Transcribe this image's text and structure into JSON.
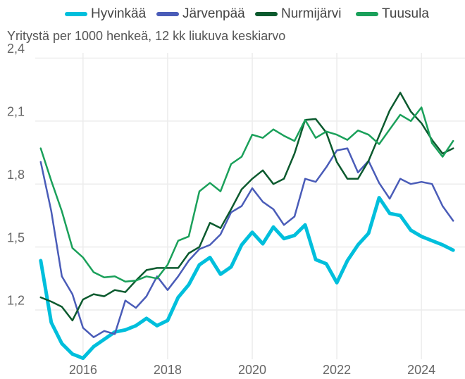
{
  "chart_data": {
    "type": "line",
    "subtitle": "Yritystä per 1000 henkeä, 12 kk liukuva keskiarvo",
    "x": [
      2015,
      2015.25,
      2015.5,
      2015.75,
      2016,
      2016.25,
      2016.5,
      2016.75,
      2017,
      2017.25,
      2017.5,
      2017.75,
      2018,
      2018.25,
      2018.5,
      2018.75,
      2019,
      2019.25,
      2019.5,
      2019.75,
      2020,
      2020.25,
      2020.5,
      2020.75,
      2021,
      2021.25,
      2021.5,
      2021.75,
      2022,
      2022.25,
      2022.5,
      2022.75,
      2023,
      2023.25,
      2023.5,
      2023.75,
      2024,
      2024.25,
      2024.5,
      2024.75
    ],
    "series": [
      {
        "name": "Hyvinkää",
        "color": "#00bfdc",
        "values": [
          1.435,
          1.14,
          1.04,
          0.99,
          0.97,
          1.025,
          1.06,
          1.095,
          1.105,
          1.125,
          1.16,
          1.125,
          1.15,
          1.26,
          1.32,
          1.415,
          1.45,
          1.37,
          1.405,
          1.51,
          1.57,
          1.515,
          1.595,
          1.54,
          1.555,
          1.605,
          1.44,
          1.42,
          1.33,
          1.435,
          1.51,
          1.565,
          1.735,
          1.66,
          1.65,
          1.58,
          1.55,
          1.53,
          1.51,
          1.485
        ]
      },
      {
        "name": "Järvenpää",
        "color": "#4a5cb8",
        "values": [
          1.905,
          1.67,
          1.36,
          1.275,
          1.115,
          1.07,
          1.1,
          1.085,
          1.245,
          1.21,
          1.265,
          1.36,
          1.295,
          1.36,
          1.435,
          1.49,
          1.51,
          1.56,
          1.665,
          1.695,
          1.78,
          1.715,
          1.68,
          1.605,
          1.645,
          1.825,
          1.81,
          1.88,
          1.96,
          1.97,
          1.855,
          1.91,
          1.805,
          1.73,
          1.825,
          1.8,
          1.81,
          1.8,
          1.695,
          1.625
        ]
      },
      {
        "name": "Nurmijärvi",
        "color": "#0b5a2e",
        "values": [
          1.26,
          1.24,
          1.215,
          1.15,
          1.25,
          1.275,
          1.265,
          1.295,
          1.285,
          1.34,
          1.39,
          1.4,
          1.4,
          1.4,
          1.47,
          1.5,
          1.615,
          1.59,
          1.68,
          1.775,
          1.825,
          1.865,
          1.8,
          1.825,
          1.945,
          2.105,
          2.11,
          2.045,
          1.905,
          1.825,
          1.825,
          1.91,
          2.03,
          2.15,
          2.235,
          2.145,
          2.09,
          2.01,
          1.945,
          1.97
        ]
      },
      {
        "name": "Tuusula",
        "color": "#1aa05a",
        "values": [
          1.97,
          1.815,
          1.67,
          1.495,
          1.45,
          1.38,
          1.355,
          1.36,
          1.335,
          1.34,
          1.36,
          1.35,
          1.415,
          1.53,
          1.55,
          1.765,
          1.805,
          1.765,
          1.895,
          1.93,
          2.035,
          2.02,
          2.06,
          2.03,
          2.005,
          2.105,
          2.02,
          2.05,
          2.035,
          2.01,
          2.055,
          2.035,
          1.99,
          2.06,
          2.13,
          2.1,
          2.165,
          1.995,
          1.93,
          2.005
        ]
      }
    ],
    "xlim": [
      2014.87,
      2025.03
    ],
    "xticks": [
      2016,
      2018,
      2020,
      2022,
      2024
    ],
    "ylim": [
      0.965,
      2.425
    ],
    "yticks": [
      {
        "value": 1.2,
        "label": "1,2"
      },
      {
        "value": 1.5,
        "label": "1,5"
      },
      {
        "value": 1.8,
        "label": "1,8"
      },
      {
        "value": 2.1,
        "label": "2,1"
      },
      {
        "value": 2.4,
        "label": "2,4"
      }
    ],
    "grid": true,
    "legend": "top"
  }
}
